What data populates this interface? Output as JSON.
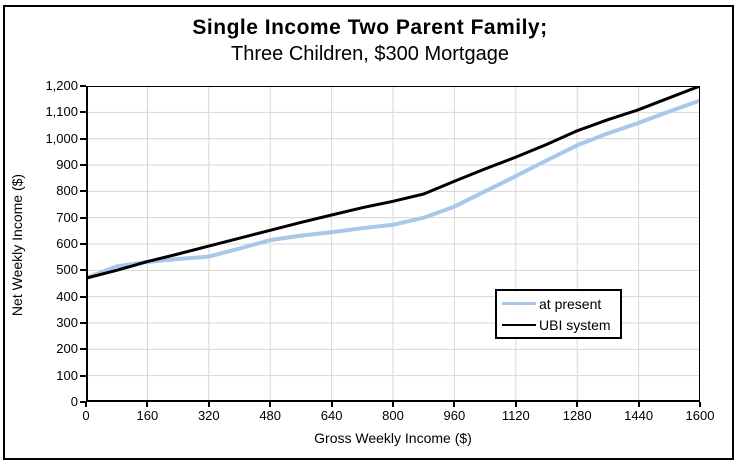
{
  "title": {
    "line1": "Single Income Two Parent Family;",
    "line2": "Three Children, $300 Mortgage"
  },
  "axes": {
    "x": {
      "title": "Gross Weekly Income ($)",
      "min": 0,
      "max": 1600,
      "tick_step": 160,
      "tick_labels": [
        "0",
        "160",
        "320",
        "480",
        "640",
        "800",
        "960",
        "1120",
        "1280",
        "1440",
        "1600"
      ]
    },
    "y": {
      "title": "Net Weekly Income ($)",
      "min": 0,
      "max": 1200,
      "tick_step": 100,
      "tick_labels": [
        "0",
        "100",
        "200",
        "300",
        "400",
        "500",
        "600",
        "700",
        "800",
        "900",
        "1,000",
        "1,100",
        "1,200"
      ]
    }
  },
  "legend": {
    "items": [
      {
        "label": "at present",
        "color": "#A8C7EA",
        "thickness": 3
      },
      {
        "label": "UBI system",
        "color": "#000000",
        "thickness": 2
      }
    ]
  },
  "colors": {
    "at_present_line": "#A8C7EA",
    "ubi_line": "#000000",
    "grid_dither_a": "#d8d8b8",
    "grid_dither_b": "#d6d6f0",
    "axis": "#000000",
    "background": "#ffffff"
  },
  "chart_data": {
    "type": "line",
    "title": "Single Income Two Parent Family; Three Children, $300 Mortgage",
    "xlabel": "Gross Weekly Income ($)",
    "ylabel": "Net Weekly Income ($)",
    "xlim": [
      0,
      1600
    ],
    "ylim": [
      0,
      1200
    ],
    "grid": true,
    "legend_position": "inside-right-middle",
    "x": [
      0,
      80,
      160,
      240,
      320,
      400,
      480,
      560,
      640,
      720,
      800,
      880,
      960,
      1040,
      1120,
      1200,
      1280,
      1360,
      1440,
      1520,
      1600
    ],
    "series": [
      {
        "name": "at present",
        "color": "#A8C7EA",
        "width": 4,
        "values": [
          470,
          515,
          532,
          543,
          552,
          583,
          615,
          632,
          645,
          660,
          673,
          700,
          742,
          800,
          858,
          917,
          975,
          1020,
          1060,
          1103,
          1145
        ]
      },
      {
        "name": "UBI system",
        "color": "#000000",
        "width": 3,
        "values": [
          470,
          500,
          533,
          562,
          592,
          622,
          652,
          682,
          710,
          738,
          762,
          790,
          838,
          885,
          930,
          978,
          1030,
          1072,
          1110,
          1155,
          1200
        ]
      }
    ]
  }
}
